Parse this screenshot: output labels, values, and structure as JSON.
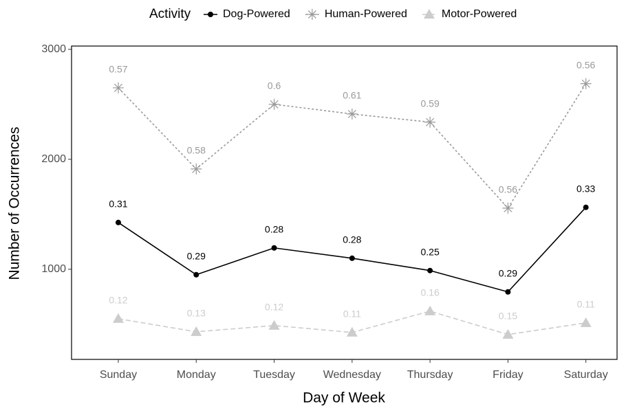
{
  "chart_data": {
    "type": "line",
    "xlabel": "Day of Week",
    "ylabel": "Number of Occurrences",
    "legend_title": "Activity",
    "legend": "top",
    "categories": [
      "Sunday",
      "Monday",
      "Tuesday",
      "Wednesday",
      "Thursday",
      "Friday",
      "Saturday"
    ],
    "ylim": [
      180,
      3030
    ],
    "yticks": [
      1000,
      2000,
      3000
    ],
    "series": [
      {
        "name": "Dog-Powered",
        "color": "#000000",
        "dash": "solid",
        "marker": "circle",
        "values": [
          1425,
          950,
          1194,
          1100,
          988,
          794,
          1563
        ],
        "annotations": [
          0.31,
          0.29,
          0.28,
          0.28,
          0.25,
          0.29,
          0.33
        ]
      },
      {
        "name": "Human-Powered",
        "color": "#999999",
        "dash": "dotted",
        "marker": "asterisk",
        "values": [
          2650,
          1912,
          2500,
          2412,
          2338,
          1556,
          2688
        ],
        "annotations": [
          0.57,
          0.58,
          0.6,
          0.61,
          0.59,
          0.56,
          0.56
        ]
      },
      {
        "name": "Motor-Powered",
        "color": "#cccccc",
        "dash": "dashed",
        "marker": "triangle",
        "values": [
          550,
          431,
          488,
          425,
          619,
          406,
          512
        ],
        "annotations": [
          0.12,
          0.13,
          0.12,
          0.11,
          0.16,
          0.15,
          0.11
        ]
      }
    ]
  }
}
